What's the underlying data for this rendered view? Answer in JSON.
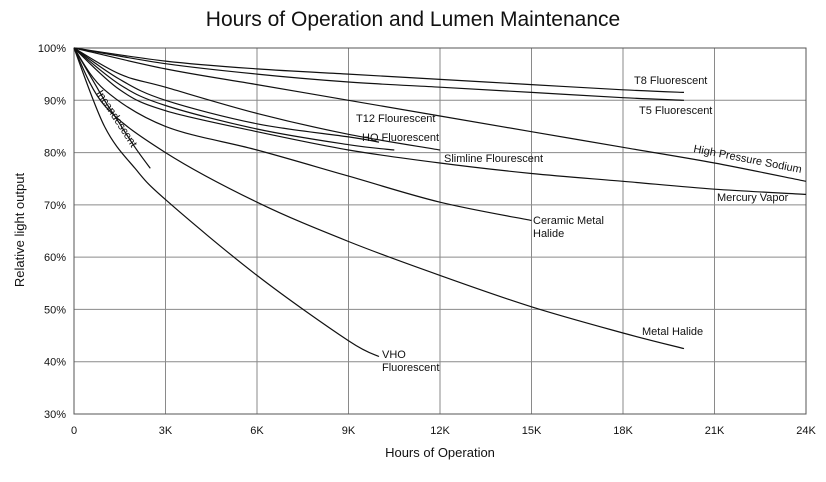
{
  "chart_data": {
    "type": "line",
    "title": "Hours of Operation and Lumen Maintenance",
    "xlabel": "Hours of Operation",
    "ylabel": "Relative light output",
    "xlim": [
      0,
      24000
    ],
    "ylim": [
      30,
      100
    ],
    "x_ticks": [
      {
        "value": 0,
        "label": "0"
      },
      {
        "value": 3000,
        "label": "3K"
      },
      {
        "value": 6000,
        "label": "6K"
      },
      {
        "value": 9000,
        "label": "9K"
      },
      {
        "value": 12000,
        "label": "12K"
      },
      {
        "value": 15000,
        "label": "15K"
      },
      {
        "value": 18000,
        "label": "18K"
      },
      {
        "value": 21000,
        "label": "21K"
      },
      {
        "value": 24000,
        "label": "24K"
      }
    ],
    "y_ticks": [
      {
        "value": 30,
        "label": "30%"
      },
      {
        "value": 40,
        "label": "40%"
      },
      {
        "value": 50,
        "label": "50%"
      },
      {
        "value": 60,
        "label": "60%"
      },
      {
        "value": 70,
        "label": "70%"
      },
      {
        "value": 80,
        "label": "80%"
      },
      {
        "value": 90,
        "label": "90%"
      },
      {
        "value": 100,
        "label": "100%"
      }
    ],
    "grid": true,
    "series": [
      {
        "name": "T8 Fluorescent",
        "label_lines": [
          "T8 Fluorescent"
        ],
        "x": [
          0,
          3000,
          6000,
          9000,
          12000,
          15000,
          18000,
          20000
        ],
        "y": [
          100,
          97.5,
          96,
          95,
          94,
          93,
          92,
          91.5
        ]
      },
      {
        "name": "T5 Fluorescent",
        "label_lines": [
          "T5 Fluorescent"
        ],
        "x": [
          0,
          3000,
          6000,
          9000,
          12000,
          15000,
          18000,
          20000
        ],
        "y": [
          100,
          97,
          95,
          93.5,
          92.5,
          91.5,
          90.5,
          90
        ]
      },
      {
        "name": "High Pressure Sodium",
        "label_lines": [
          "High Pressure Sodium"
        ],
        "x": [
          0,
          3000,
          6000,
          9000,
          12000,
          15000,
          18000,
          21000,
          24000
        ],
        "y": [
          100,
          96,
          93,
          90,
          87,
          84,
          81,
          78,
          74.5
        ]
      },
      {
        "name": "Mercury Vapor",
        "label_lines": [
          "Mercury Vapor"
        ],
        "x": [
          0,
          1500,
          3000,
          6000,
          9000,
          12000,
          15000,
          18000,
          21000,
          24000
        ],
        "y": [
          100,
          92,
          88,
          84,
          80.5,
          78,
          76,
          74.5,
          73,
          72
        ]
      },
      {
        "name": "T12 Flourescent",
        "label_lines": [
          "T12 Flourescent"
        ],
        "x": [
          0,
          1500,
          3000,
          6000,
          9000,
          10000
        ],
        "y": [
          100,
          94,
          90,
          85.5,
          83,
          82
        ]
      },
      {
        "name": "HO Fluorescent",
        "label_lines": [
          "HO Fluorescent"
        ],
        "x": [
          0,
          1500,
          3000,
          6000,
          9000,
          10500
        ],
        "y": [
          100,
          93,
          89,
          84.5,
          81.5,
          80.5
        ]
      },
      {
        "name": "Slimline Flourescent",
        "label_lines": [
          "Slimline Flourescent"
        ],
        "x": [
          0,
          1500,
          3000,
          6000,
          9000,
          12000
        ],
        "y": [
          100,
          95,
          92.5,
          87.5,
          83.5,
          80.5
        ]
      },
      {
        "name": "Ceramic Metal Halide",
        "label_lines": [
          "Ceramic Metal",
          "Halide"
        ],
        "x": [
          0,
          1000,
          3000,
          6000,
          9000,
          12000,
          15000
        ],
        "y": [
          100,
          92,
          85,
          80.5,
          75.5,
          70.5,
          67
        ]
      },
      {
        "name": "Metal Halide",
        "label_lines": [
          "Metal Halide"
        ],
        "x": [
          0,
          1000,
          3000,
          6000,
          9000,
          12000,
          15000,
          18000,
          20000
        ],
        "y": [
          100,
          89,
          80,
          70.5,
          63,
          56.5,
          50.5,
          45.5,
          42.5
        ]
      },
      {
        "name": "VHO Fluorescent",
        "label_lines": [
          "VHO",
          "Fluorescent"
        ],
        "x": [
          0,
          1000,
          2000,
          3000,
          6000,
          9000,
          10000
        ],
        "y": [
          100,
          85,
          77,
          71,
          56.5,
          44,
          41
        ]
      },
      {
        "name": "Incandescent",
        "label_lines": [
          "Incandescent"
        ],
        "x": [
          0,
          300,
          700,
          1000,
          1500,
          2000,
          2500
        ],
        "y": [
          100,
          97,
          93,
          90,
          85.5,
          81,
          77
        ]
      }
    ]
  }
}
